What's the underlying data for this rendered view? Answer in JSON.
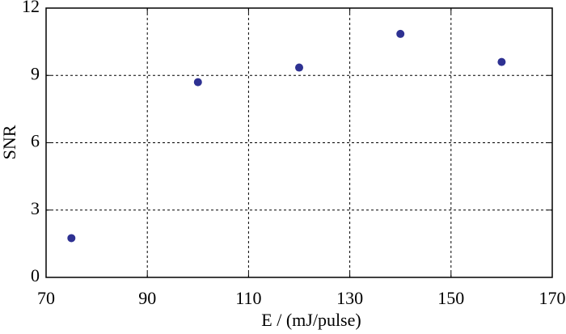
{
  "chart_data": {
    "type": "scatter",
    "x_label": "E / (mJ/pulse)",
    "y_label": "SNR",
    "series": [
      {
        "color": "#2e3192",
        "x": [
          75,
          100,
          120,
          140,
          160
        ],
        "values": [
          1.75,
          8.7,
          9.35,
          10.85,
          9.6
        ]
      }
    ],
    "xlim": [
      70,
      170
    ],
    "xticks": [
      70,
      90,
      110,
      130,
      150,
      170
    ],
    "ylim": [
      0,
      12
    ],
    "yticks": [
      0,
      3,
      6,
      9,
      12
    ],
    "grid": true
  }
}
